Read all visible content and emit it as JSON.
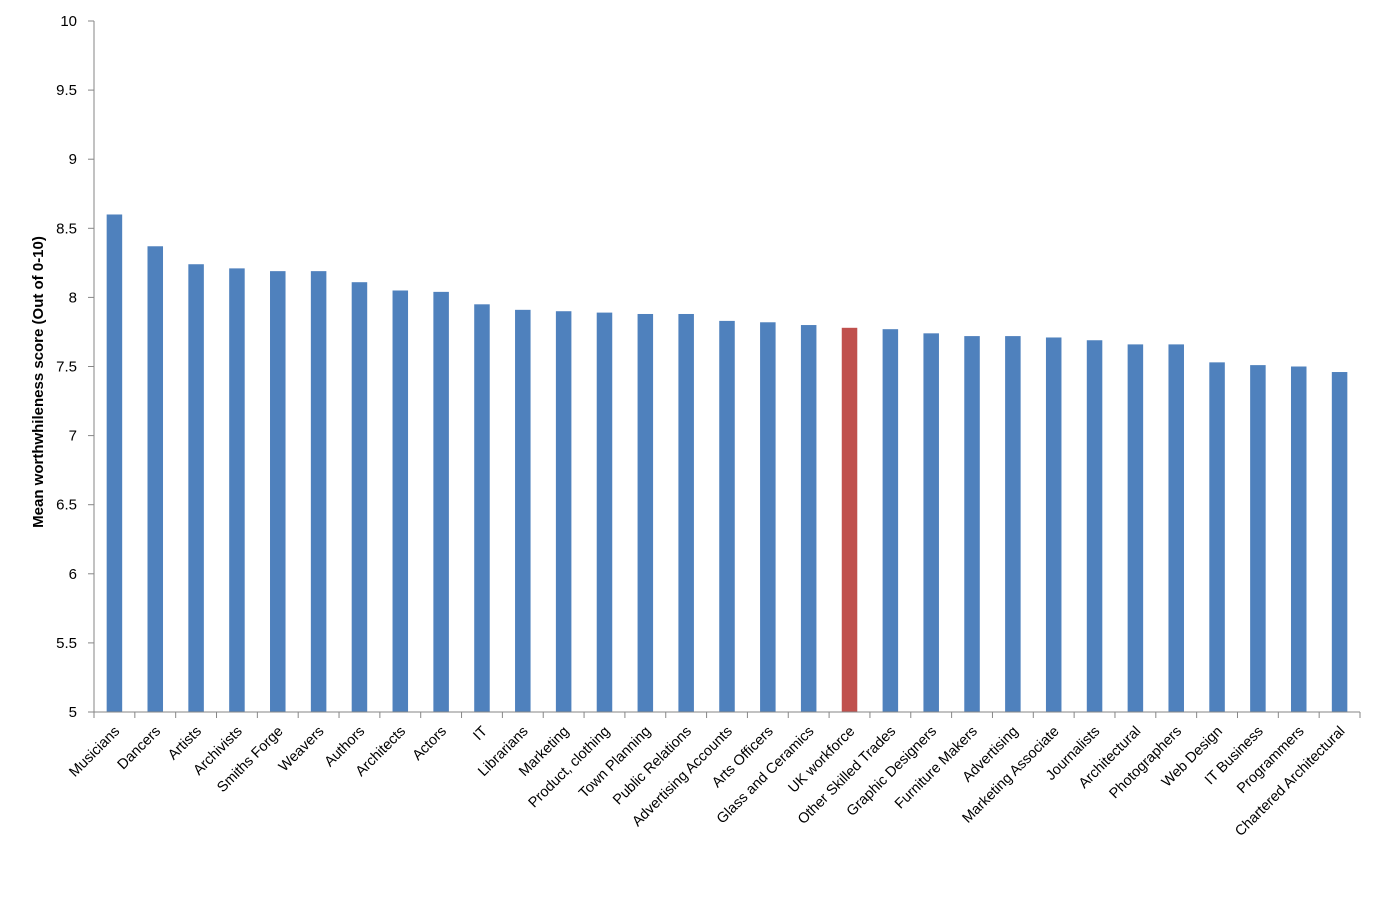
{
  "chart_data": {
    "type": "bar",
    "title": "",
    "xlabel": "",
    "ylabel": "Mean worthwhileness score  (Out of 0-10)",
    "ylim": [
      5,
      10
    ],
    "yticks": [
      "5",
      "5.5",
      "6",
      "6.5",
      "7",
      "7.5",
      "8",
      "8.5",
      "9",
      "9.5",
      "10"
    ],
    "grid": false,
    "legend": "none",
    "bar_color": "#4F81BD",
    "highlight_color": "#C0504D",
    "highlight_category": "UK workforce",
    "categories": [
      "Musicians",
      "Dancers",
      "Artists",
      "Archivists",
      "Smiths Forge",
      "Weavers",
      "Authors",
      "Architects",
      "Actors",
      "IT",
      "Librarians",
      "Marketing",
      "Product, clothing",
      "Town Planning",
      "Public Relations",
      "Advertising Accounts",
      "Arts Officers",
      "Glass and Ceramics",
      "UK workforce",
      "Other Skilled Trades",
      "Graphic Designers",
      "Furniture Makers",
      "Advertising",
      "Marketing Associate",
      "Journalists",
      "Architectural",
      "Photographers",
      "Web Design",
      "IT Business",
      "Programmers",
      "Chartered Architectural"
    ],
    "values": [
      8.6,
      8.37,
      8.24,
      8.21,
      8.19,
      8.19,
      8.11,
      8.05,
      8.04,
      7.95,
      7.91,
      7.9,
      7.89,
      7.88,
      7.88,
      7.83,
      7.82,
      7.8,
      7.78,
      7.77,
      7.74,
      7.72,
      7.72,
      7.71,
      7.69,
      7.66,
      7.66,
      7.53,
      7.51,
      7.5,
      7.46
    ]
  }
}
